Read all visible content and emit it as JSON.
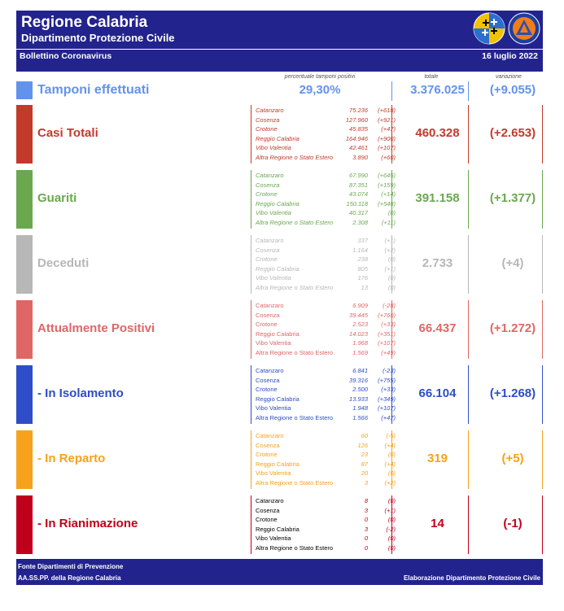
{
  "header": {
    "title": "Regione Calabria",
    "subtitle": "Dipartimento Protezione Civile",
    "bulletin": "Bollettino Coronavirus",
    "date": "16 luglio 2022"
  },
  "column_headers": {
    "pct": "percentuale tamponi positivi",
    "totale": "totale",
    "variazione": "variazione"
  },
  "tamponi": {
    "label": "Tamponi effettuati",
    "pct": "29,30%",
    "total": "3.376.025",
    "variation": "(+9.055)",
    "color": "#6193ed"
  },
  "sections": [
    {
      "label": "Casi Totali",
      "color": "#c33a2a",
      "accent": "#c33a2a",
      "total": "460.328",
      "variation": "(+2.653)",
      "italic": true,
      "rows": [
        {
          "p": "Catanzaro",
          "v": "75.236",
          "d": "(+618)"
        },
        {
          "p": "Cosenza",
          "v": "127.960",
          "d": "(+921)"
        },
        {
          "p": "Crotone",
          "v": "45.835",
          "d": "(+47)"
        },
        {
          "p": "Reggio Calabria",
          "v": "164.946",
          "d": "(+900)"
        },
        {
          "p": "Vibo Valentia",
          "v": "42.461",
          "d": "(+107)"
        },
        {
          "p": "Altra Regione o Stato Estero",
          "v": "3.890",
          "d": "(+60)"
        }
      ]
    },
    {
      "label": "Guariti",
      "color": "#6aa84f",
      "accent": "#6aa84f",
      "total": "391.158",
      "variation": "(+1.377)",
      "italic": true,
      "rows": [
        {
          "p": "Catanzaro",
          "v": "67.990",
          "d": "(+645)"
        },
        {
          "p": "Cosenza",
          "v": "87.351",
          "d": "(+159)"
        },
        {
          "p": "Crotone",
          "v": "43.074",
          "d": "(+14)"
        },
        {
          "p": "Reggio Calabria",
          "v": "150.118",
          "d": "(+548)"
        },
        {
          "p": "Vibo Valentia",
          "v": "40.317",
          "d": "(0)"
        },
        {
          "p": "Altra Regione o Stato Estero",
          "v": "2.308",
          "d": "(+11)"
        }
      ]
    },
    {
      "label": "Deceduti",
      "color": "#b7b7b7",
      "accent": "#b7b7b7",
      "total": "2.733",
      "variation": "(+4)",
      "italic": true,
      "rows": [
        {
          "p": "Catanzaro",
          "v": "337",
          "d": "(+1)"
        },
        {
          "p": "Cosenza",
          "v": "1.164",
          "d": "(+2)"
        },
        {
          "p": "Crotone",
          "v": "238",
          "d": "(0)"
        },
        {
          "p": "Reggio Calabria",
          "v": "805",
          "d": "(+1)"
        },
        {
          "p": "Vibo Valentia",
          "v": "176",
          "d": "(0)"
        },
        {
          "p": "Altra Regione o Stato Estero",
          "v": "13",
          "d": "(0)"
        }
      ]
    },
    {
      "label": "Attualmente Positivi",
      "color": "#e06666",
      "accent": "#e06666",
      "total": "66.437",
      "variation": "(+1.272)",
      "italic": false,
      "rows": [
        {
          "p": "Catanzaro",
          "v": "6.909",
          "d": "(-28)"
        },
        {
          "p": "Cosenza",
          "v": "39.445",
          "d": "(+760)"
        },
        {
          "p": "Crotone",
          "v": "2.523",
          "d": "(+33)"
        },
        {
          "p": "Reggio Calabria",
          "v": "14.023",
          "d": "(+351)"
        },
        {
          "p": "Vibo Valentia",
          "v": "1.968",
          "d": "(+107)"
        },
        {
          "p": "Altra Regione o Stato Estero",
          "v": "1.569",
          "d": "(+49)"
        }
      ]
    },
    {
      "label": "- In Isolamento",
      "color": "#2e4dc8",
      "accent": "#2e4dc8",
      "total": "66.104",
      "variation": "(+1.268)",
      "italic": false,
      "rows": [
        {
          "p": "Catanzaro",
          "v": "6.841",
          "d": "(-23)"
        },
        {
          "p": "Cosenza",
          "v": "39.316",
          "d": "(+755)"
        },
        {
          "p": "Crotone",
          "v": "2.500",
          "d": "(+33)"
        },
        {
          "p": "Reggio Calabria",
          "v": "13.933",
          "d": "(+349)"
        },
        {
          "p": "Vibo Valentia",
          "v": "1.948",
          "d": "(+107)"
        },
        {
          "p": "Altra Regione o Stato Estero",
          "v": "1.566",
          "d": "(+47)"
        }
      ]
    },
    {
      "label": "- In Reparto",
      "color": "#f6a21c",
      "accent": "#f6a21c",
      "total": "319",
      "variation": "(+5)",
      "italic": false,
      "rows": [
        {
          "p": "Catanzaro",
          "v": "60",
          "d": "(-5)"
        },
        {
          "p": "Cosenza",
          "v": "126",
          "d": "(+4)"
        },
        {
          "p": "Crotone",
          "v": "23",
          "d": "(0)"
        },
        {
          "p": "Reggio Calabria",
          "v": "87",
          "d": "(+4)"
        },
        {
          "p": "Vibo Valentia",
          "v": "20",
          "d": "(0)"
        },
        {
          "p": "Altra Regione o Stato Estero",
          "v": "3",
          "d": "(+2)"
        }
      ]
    },
    {
      "label": "- In Rianimazione",
      "color": "#c0001a",
      "accent": "#c0001a",
      "total": "14",
      "variation": "(-1)",
      "italic": false,
      "plain_labels": true,
      "rows": [
        {
          "p": "Catanzaro",
          "v": "8",
          "d": "(0)"
        },
        {
          "p": "Cosenza",
          "v": "3",
          "d": "(+1)"
        },
        {
          "p": "Crotone",
          "v": "0",
          "d": "(0)"
        },
        {
          "p": "Reggio Calabria",
          "v": "3",
          "d": "(-2)"
        },
        {
          "p": "Vibo Valentia",
          "v": "0",
          "d": "(0)"
        },
        {
          "p": "Altra Regione o Stato Estero",
          "v": "0",
          "d": "(0)"
        }
      ]
    }
  ],
  "footer": {
    "source_line1": "Fonte Dipartimenti di Prevenzione",
    "source_line2": "AA.SS.PP.  della Regione Calabria",
    "credit": "Elaborazione Dipartimento Protezione Civile"
  }
}
